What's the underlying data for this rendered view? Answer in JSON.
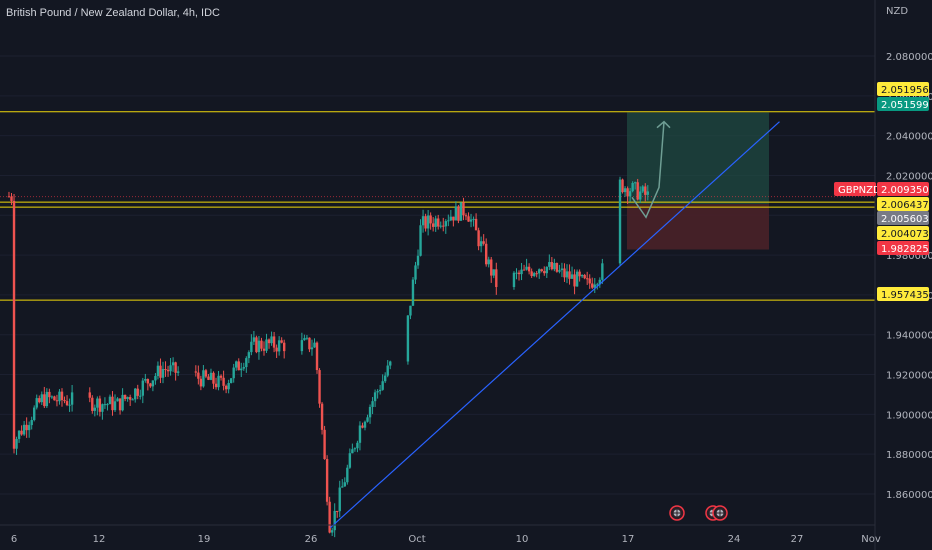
{
  "header": {
    "title": "British Pound / New Zealand Dollar, 4h, IDC"
  },
  "price_axis": {
    "currency": "NZD"
  },
  "colors": {
    "background": "#131722",
    "up": "#26a69a",
    "down": "#ef5350",
    "level_line": "#f0d70a",
    "trend_line": "#2962ff",
    "target_zone": "#1f4a42",
    "stop_zone": "#4a2128",
    "projection_arrow": "#6f9e94"
  },
  "symbol_tag": {
    "label": "GBPNZD",
    "value": "2.009350",
    "bg": "#f23645"
  },
  "price_tags": [
    {
      "value": 2.051956,
      "text": "2.051956",
      "bg": "#ffeb3b",
      "fg": "#131722"
    },
    {
      "value": 2.051599,
      "text": "2.051599",
      "bg": "#089981",
      "fg": "#ffffff"
    },
    {
      "value": 2.006437,
      "text": "2.006437",
      "bg": "#ffeb3b",
      "fg": "#131722"
    },
    {
      "value": 2.005603,
      "text": "2.005603",
      "bg": "#787b86",
      "fg": "#ffffff"
    },
    {
      "value": 2.004073,
      "text": "2.004073",
      "bg": "#ffeb3b",
      "fg": "#131722"
    },
    {
      "value": 1.982825,
      "text": "1.982825",
      "bg": "#f23645",
      "fg": "#ffffff"
    },
    {
      "value": 1.957435,
      "text": "1.957435",
      "bg": "#ffeb3b",
      "fg": "#131722"
    }
  ],
  "chart_data": {
    "type": "candlestick",
    "title": "British Pound / New Zealand Dollar, 4h, IDC",
    "y_unit": "NZD",
    "ylim": [
      1.843,
      2.1
    ],
    "yticks": [
      "2.080000",
      "2.060000",
      "2.040000",
      "2.020000",
      "1.980000",
      "1.960000",
      "1.940000",
      "1.920000",
      "1.900000",
      "1.880000",
      "1.860000"
    ],
    "x_ticks": [
      "6",
      "12",
      "19",
      "26",
      "Oct",
      "10",
      "17",
      "24",
      "27",
      "Nov"
    ],
    "x_range": [
      "Sep 5",
      "Nov 4"
    ],
    "horizontal_levels": [
      2.052,
      2.0066,
      2.0041,
      1.9574
    ],
    "last_price": 2.00935,
    "key_points": [
      {
        "date": "Sep 5",
        "close": 1.885
      },
      {
        "date": "Sep 7",
        "close": 1.908
      },
      {
        "date": "Sep 12",
        "close": 1.905
      },
      {
        "date": "Sep 15",
        "close": 1.923
      },
      {
        "date": "Sep 19",
        "close": 1.915
      },
      {
        "date": "Sep 21",
        "close": 1.935
      },
      {
        "date": "Sep 25",
        "close": 1.935
      },
      {
        "date": "Sep 26",
        "close": 1.842
      },
      {
        "date": "Sep 28",
        "close": 1.895
      },
      {
        "date": "Oct 1",
        "close": 1.94
      },
      {
        "date": "Oct 2",
        "close": 1.995
      },
      {
        "date": "Oct 5",
        "close": 2.003
      },
      {
        "date": "Oct 7",
        "close": 1.965
      },
      {
        "date": "Oct 10",
        "close": 1.975
      },
      {
        "date": "Oct 13",
        "close": 1.965
      },
      {
        "date": "Oct 15",
        "close": 1.98
      },
      {
        "date": "Oct 15",
        "close": 2.016
      },
      {
        "date": "Oct 17",
        "close": 2.0095
      }
    ],
    "trend_line": {
      "from": {
        "date": "Sep 26",
        "price": 1.843
      },
      "to": {
        "date": "Oct 25",
        "price": 2.047
      }
    },
    "position": {
      "entry": 2.0056,
      "target": 2.0516,
      "stop": 1.9828,
      "from_date": "Oct 17",
      "to_date": "Oct 24"
    }
  },
  "events": [
    {
      "name": "flag-event-1",
      "date": "Oct 20"
    },
    {
      "name": "flag-event-2",
      "date": "Oct 22"
    },
    {
      "name": "flag-event-3",
      "date": "Oct 22"
    }
  ]
}
